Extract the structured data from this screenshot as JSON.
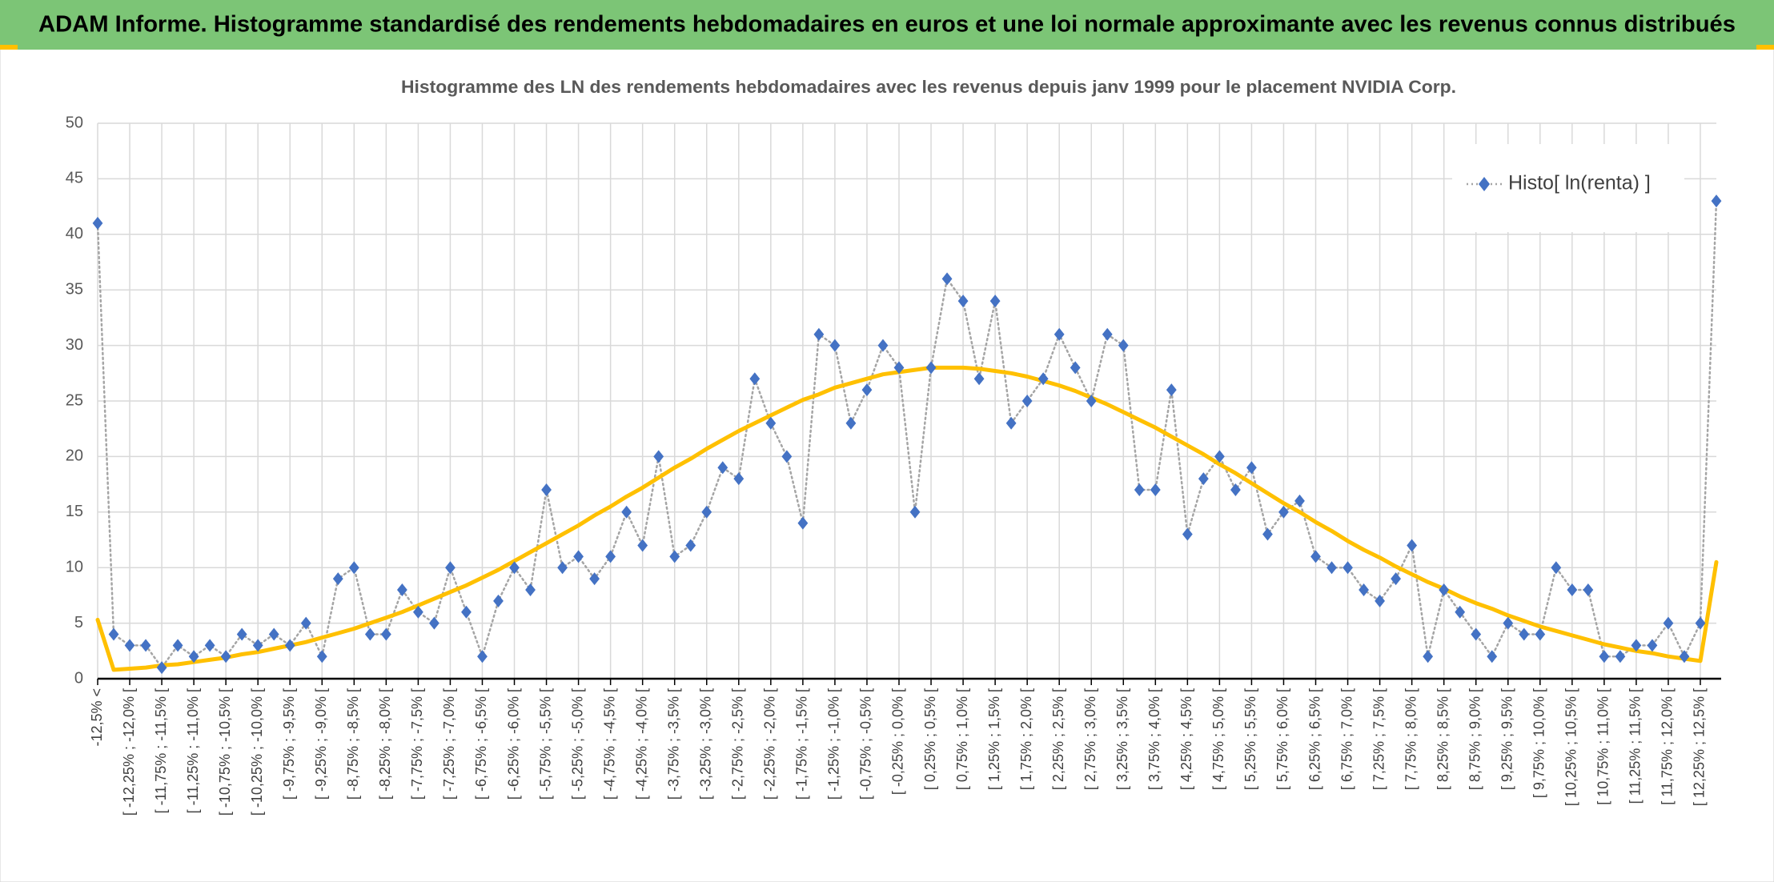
{
  "header": {
    "title": "ADAM Informe. Histogramme standardisé des rendements hebdomadaires en euros et une loi normale approximante avec les revenus connus distribués"
  },
  "chart_data": {
    "type": "line",
    "title": "Histogramme des LN des rendements hebdomadaires avec les revenus depuis janv 1999 pour le placement NVIDIA Corp.",
    "categories": [
      "-12,5% <",
      null,
      "[ -12,25% ; -12,0% [",
      null,
      "[ -11,75% ; -11,5% [",
      null,
      "[ -11,25% ; -11,0% [",
      null,
      "[ -10,75% ; -10,5% [",
      null,
      "[ -10,25% ; -10,0% [",
      null,
      "[ -9,75% ; -9,5% [",
      null,
      "[ -9,25% ; -9,0% [",
      null,
      "[ -8,75% ; -8,5% [",
      null,
      "[ -8,25% ; -8,0% [",
      null,
      "[ -7,75% ; -7,5% [",
      null,
      "[ -7,25% ; -7,0% [",
      null,
      "[ -6,75% ; -6,5% [",
      null,
      "[ -6,25% ; -6,0% [",
      null,
      "[ -5,75% ; -5,5% [",
      null,
      "[ -5,25% ; -5,0% [",
      null,
      "[ -4,75% ; -4,5% [",
      null,
      "[ -4,25% ; -4,0% [",
      null,
      "[ -3,75% ; -3,5% [",
      null,
      "[ -3,25% ; -3,0% [",
      null,
      "[ -2,75% ; -2,5% [",
      null,
      "[ -2,25% ; -2,0% [",
      null,
      "[ -1,75% ; -1,5% [",
      null,
      "[ -1,25% ; -1,0% [",
      null,
      "[ -0,75% ; -0,5% [",
      null,
      "[ -0,25% ; 0,0% [",
      null,
      "[ 0,25% ; 0,5% [",
      null,
      "[ 0,75% ; 1,0% [",
      null,
      "[ 1,25% ; 1,5% [",
      null,
      "[ 1,75% ; 2,0% [",
      null,
      "[ 2,25% ; 2,5% [",
      null,
      "[ 2,75% ; 3,0% [",
      null,
      "[ 3,25% ; 3,5% [",
      null,
      "[ 3,75% ; 4,0% [",
      null,
      "[ 4,25% ; 4,5% [",
      null,
      "[ 4,75% ; 5,0% [",
      null,
      "[ 5,25% ; 5,5% [",
      null,
      "[ 5,75% ; 6,0% [",
      null,
      "[ 6,25% ; 6,5% [",
      null,
      "[ 6,75% ; 7,0% [",
      null,
      "[ 7,25% ; 7,5% [",
      null,
      "[ 7,75% ; 8,0% [",
      null,
      "[ 8,25% ; 8,5% [",
      null,
      "[ 8,75% ; 9,0% [",
      null,
      "[ 9,25% ; 9,5% [",
      null,
      "[ 9,75% ; 10,0% [",
      null,
      "[ 10,25% ; 10,5% [",
      null,
      "[ 10,75% ; 11,0% [",
      null,
      "[ 11,25% ; 11,5% [",
      null,
      "[ 11,75% ; 12,0% [",
      null,
      "[ 12,25% ; 12,5% [",
      null
    ],
    "series": [
      {
        "name": "Histo[ ln(renta) ]",
        "color": "#4472c4",
        "line_color": "#a5a5a5",
        "line_style": "dotted",
        "marker": "diamond",
        "values": [
          41,
          4,
          3,
          3,
          1,
          3,
          2,
          3,
          2,
          4,
          3,
          4,
          3,
          5,
          2,
          9,
          10,
          4,
          4,
          8,
          6,
          5,
          10,
          6,
          2,
          7,
          10,
          8,
          17,
          10,
          11,
          9,
          11,
          15,
          12,
          20,
          11,
          12,
          15,
          19,
          18,
          27,
          23,
          20,
          14,
          31,
          30,
          23,
          26,
          30,
          28,
          15,
          28,
          36,
          34,
          27,
          34,
          23,
          25,
          27,
          31,
          28,
          25,
          31,
          30,
          17,
          17,
          26,
          13,
          18,
          20,
          17,
          19,
          13,
          15,
          16,
          11,
          10,
          10,
          8,
          7,
          9,
          12,
          2,
          8,
          6,
          4,
          2,
          5,
          4,
          4,
          10,
          8,
          8,
          2,
          2,
          3,
          3,
          5,
          2,
          5,
          43
        ]
      },
      {
        "color": "#ffc000",
        "line_style": "solid",
        "values": [
          5.3,
          0.8,
          0.9,
          1.0,
          1.2,
          1.3,
          1.5,
          1.7,
          1.9,
          2.2,
          2.4,
          2.7,
          3.0,
          3.3,
          3.7,
          4.1,
          4.5,
          5.0,
          5.5,
          6.0,
          6.6,
          7.2,
          7.8,
          8.4,
          9.1,
          9.8,
          10.6,
          11.4,
          12.2,
          13.0,
          13.8,
          14.7,
          15.5,
          16.4,
          17.2,
          18.1,
          19.0,
          19.8,
          20.7,
          21.5,
          22.3,
          23.0,
          23.7,
          24.4,
          25.1,
          25.6,
          26.2,
          26.6,
          27.0,
          27.4,
          27.6,
          27.8,
          28.0,
          28.0,
          28.0,
          27.9,
          27.7,
          27.5,
          27.2,
          26.8,
          26.4,
          25.9,
          25.3,
          24.7,
          24.0,
          23.3,
          22.6,
          21.8,
          21.0,
          20.2,
          19.3,
          18.5,
          17.6,
          16.7,
          15.8,
          15.0,
          14.1,
          13.3,
          12.4,
          11.6,
          10.9,
          10.1,
          9.4,
          8.7,
          8.1,
          7.4,
          6.8,
          6.3,
          5.7,
          5.2,
          4.7,
          4.3,
          3.9,
          3.5,
          3.1,
          2.8,
          2.5,
          2.3,
          2.0,
          1.8,
          1.6,
          10.5
        ]
      }
    ],
    "ylim": [
      0,
      50
    ],
    "yticks": [
      0,
      5,
      10,
      15,
      20,
      25,
      30,
      35,
      40,
      45,
      50
    ],
    "grid": true,
    "legend": "upper right"
  }
}
